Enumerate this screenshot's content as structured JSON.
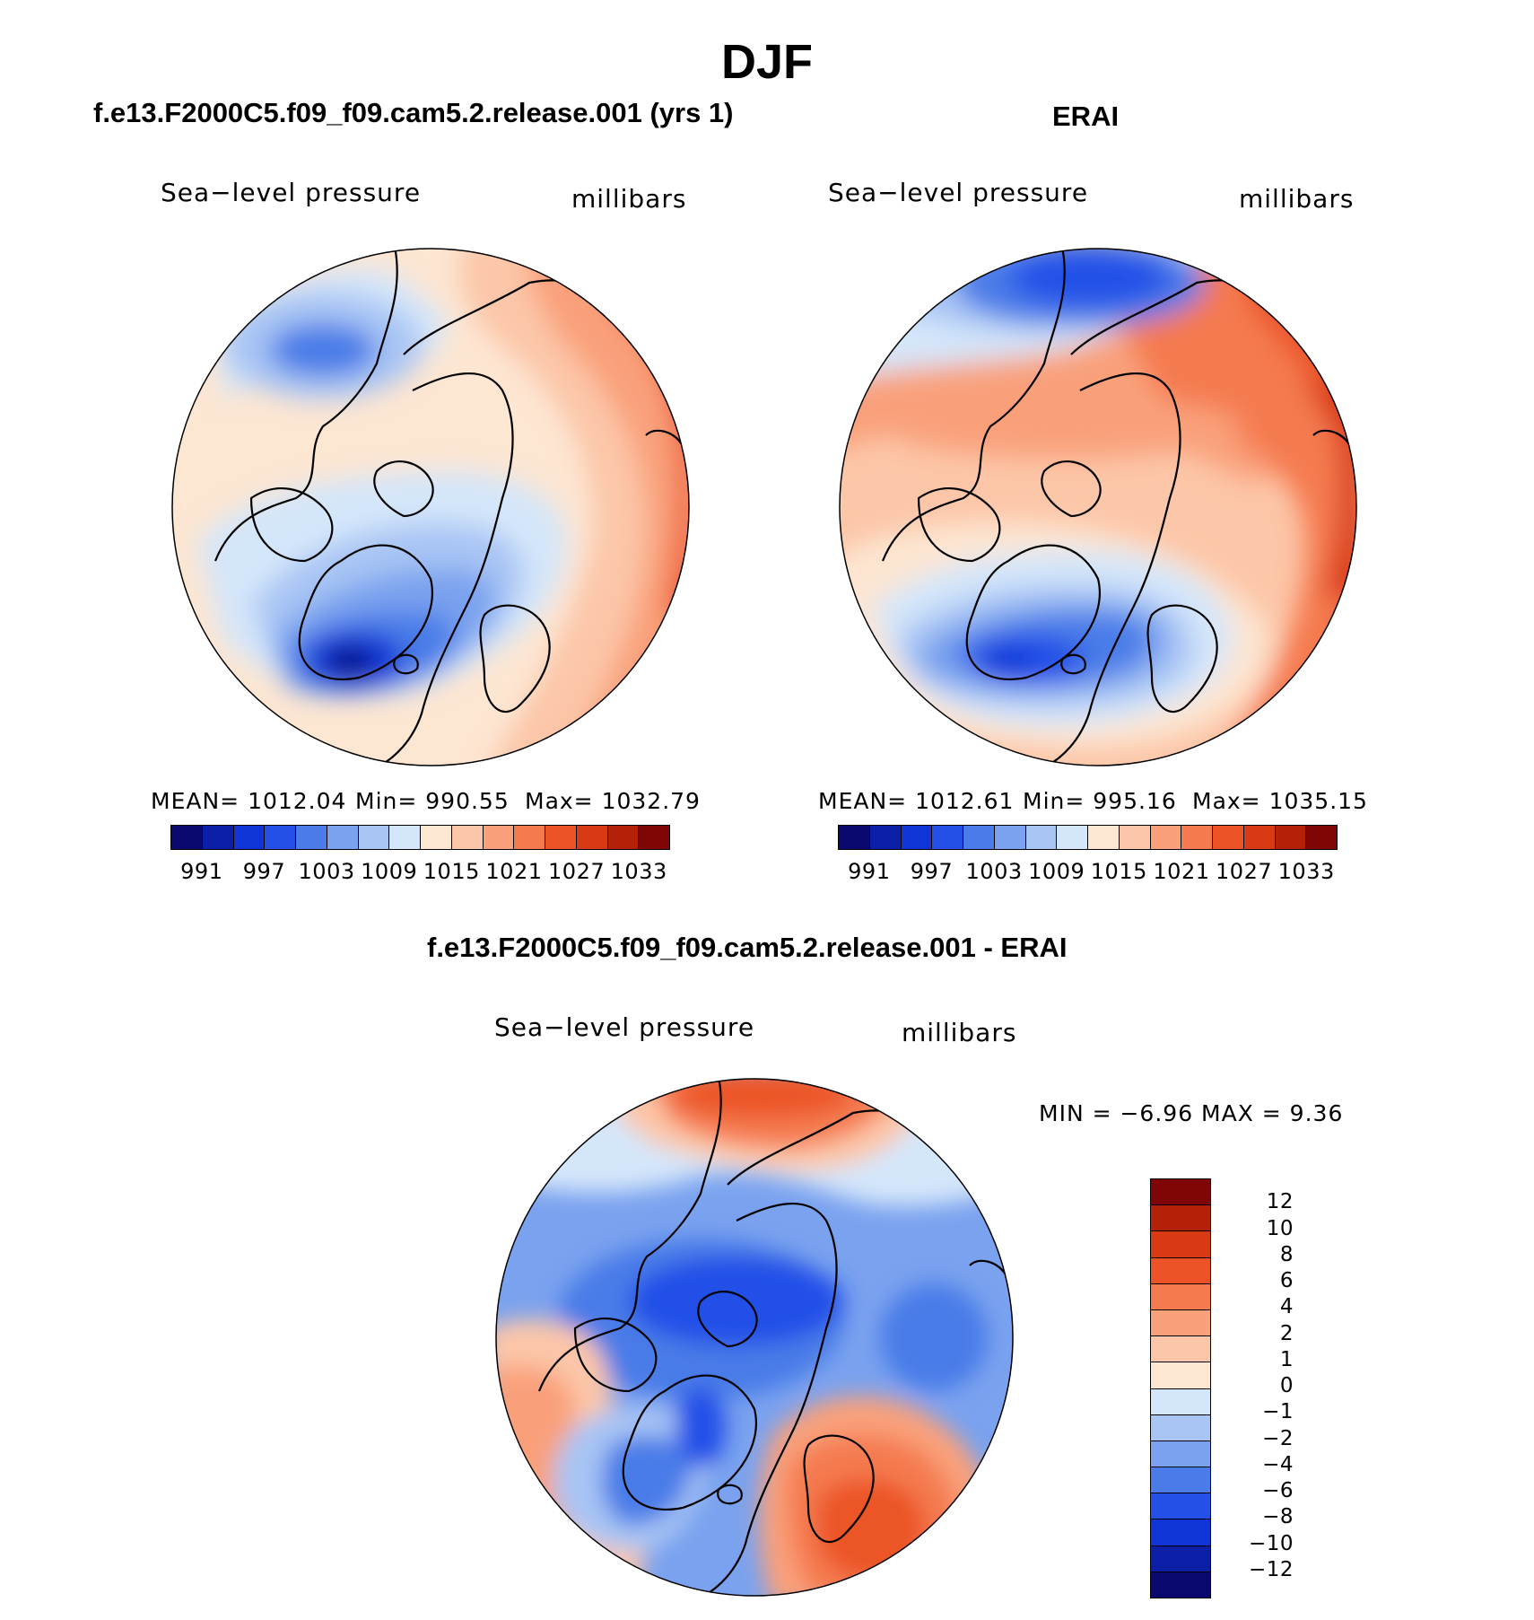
{
  "page_title": "DJF",
  "panels": {
    "model": {
      "title": "f.e13.F2000C5.f09_f09.cam5.2.release.001 (yrs 1)",
      "variable": "Sea−level pressure",
      "units": "millibars",
      "stats": {
        "mean": "MEAN=  1012.04",
        "min": "Min=  990.55",
        "max": "Max=  1032.79"
      }
    },
    "obs": {
      "title": "ERAI",
      "variable": "Sea−level pressure",
      "units": "millibars",
      "stats": {
        "mean": "MEAN=  1012.61",
        "min": "Min=  995.16",
        "max": "Max=  1035.15"
      }
    },
    "diff": {
      "title": "f.e13.F2000C5.f09_f09.cam5.2.release.001 - ERAI",
      "variable": "Sea−level pressure",
      "units": "millibars",
      "minmax": "MIN =   −6.96  MAX =     9.36"
    }
  },
  "colorbar_abs": {
    "labels": [
      "991",
      "997",
      "1003",
      "1009",
      "1015",
      "1021",
      "1027",
      "1033"
    ],
    "colors": [
      "#08086e",
      "#0b1fa6",
      "#1034d6",
      "#2450e8",
      "#4a7be8",
      "#7aa2ef",
      "#a8c5f4",
      "#d4e6fa",
      "#fde6d2",
      "#fcc6a8",
      "#f9a07a",
      "#f57a50",
      "#ec5428",
      "#d83a14",
      "#b32208",
      "#7e0606"
    ]
  },
  "colorbar_diff": {
    "labels": [
      "12",
      "10",
      "8",
      "6",
      "4",
      "2",
      "1",
      "0",
      "−1",
      "−2",
      "−4",
      "−6",
      "−8",
      "−10",
      "−12"
    ],
    "colors": [
      "#7e0606",
      "#b32208",
      "#d83a14",
      "#ec5428",
      "#f57a50",
      "#f9a07a",
      "#fcc6a8",
      "#fde6d2",
      "#d4e6fa",
      "#a8c5f4",
      "#7aa2ef",
      "#4a7be8",
      "#2450e8",
      "#1034d6",
      "#0b1fa6",
      "#08086e"
    ]
  }
}
